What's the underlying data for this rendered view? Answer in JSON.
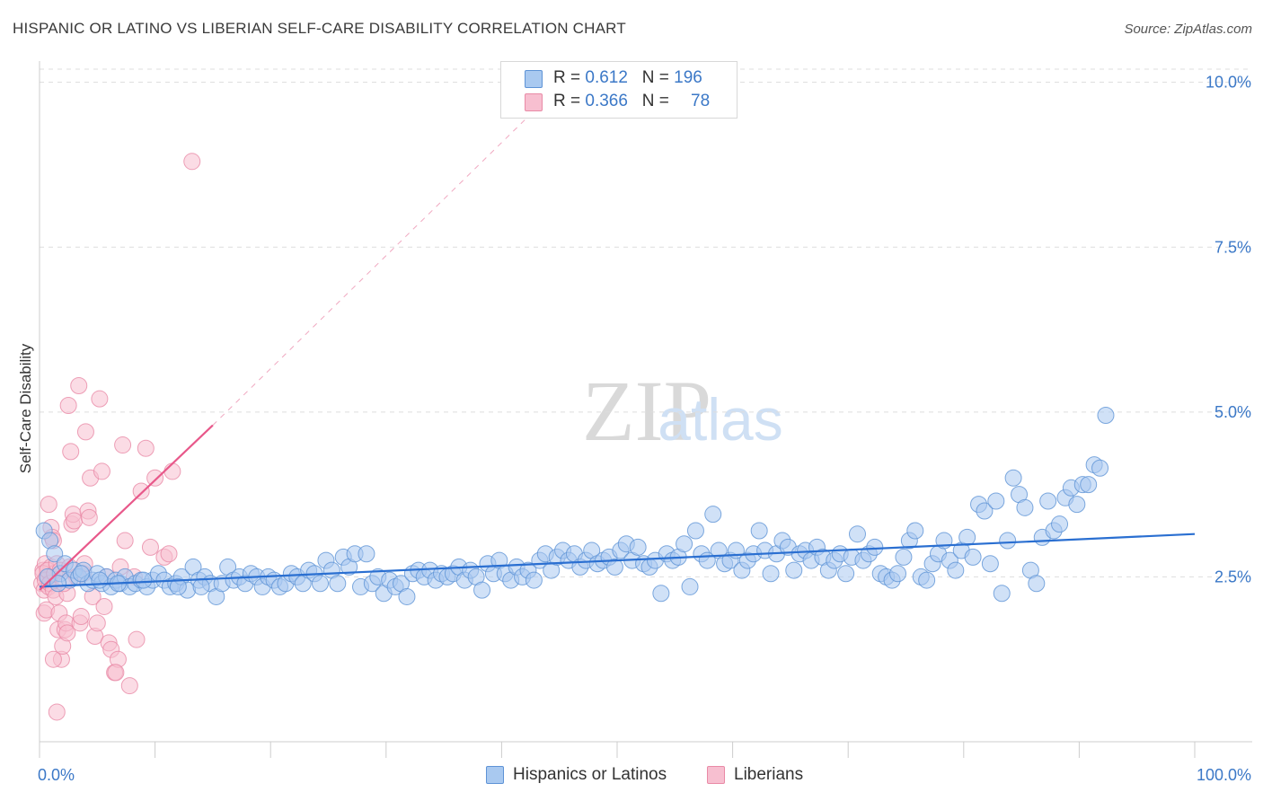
{
  "title": "HISPANIC OR LATINO VS LIBERIAN SELF-CARE DISABILITY CORRELATION CHART",
  "source": "Source: ZipAtlas.com",
  "watermark": {
    "zip": "ZIP",
    "atlas": "atlas"
  },
  "colors": {
    "blue_fill": "#a9c9f0",
    "blue_stroke": "#5e93d6",
    "blue_line": "#2a6fd1",
    "pink_fill": "#f7bfd0",
    "pink_stroke": "#e98aa6",
    "pink_line": "#e8588a",
    "grid": "#dddddd",
    "tick_text": "#3b78c7"
  },
  "legend": {
    "rows": [
      {
        "r_label": "R = ",
        "r_value": "0.612",
        "n_label": "N = ",
        "n_value": "196",
        "color": "blue"
      },
      {
        "r_label": "R = ",
        "r_value": "0.366",
        "n_label": "N = ",
        "n_value": "78",
        "color": "pink"
      }
    ]
  },
  "bottom_legend": [
    {
      "label": "Hispanics or Latinos",
      "color": "blue"
    },
    {
      "label": "Liberians",
      "color": "pink"
    }
  ],
  "chart_data": {
    "type": "scatter",
    "title": "HISPANIC OR LATINO VS LIBERIAN SELF-CARE DISABILITY CORRELATION CHART",
    "xlabel": "",
    "ylabel": "Self-Care Disability",
    "xlim": [
      0,
      100
    ],
    "ylim": [
      0,
      10.2
    ],
    "x_tick_labels": [
      {
        "value": 0,
        "label": "0.0%"
      },
      {
        "value": 100,
        "label": "100.0%"
      }
    ],
    "y_tick_labels": [
      {
        "value": 2.5,
        "label": "2.5%"
      },
      {
        "value": 5.0,
        "label": "5.0%"
      },
      {
        "value": 7.5,
        "label": "7.5%"
      },
      {
        "value": 10.0,
        "label": "10.0%"
      }
    ],
    "grid": true,
    "legend_position": "top-center",
    "series": [
      {
        "name": "Hispanics or Latinos",
        "color": "blue",
        "trend": {
          "x0": 0,
          "y0": 2.35,
          "x1": 100,
          "y1": 3.15
        },
        "points": [
          [
            0.4,
            3.2
          ],
          [
            0.9,
            3.05
          ],
          [
            1.3,
            2.85
          ],
          [
            1.8,
            2.55
          ],
          [
            2.2,
            2.7
          ],
          [
            2.6,
            2.45
          ],
          [
            3.0,
            2.6
          ],
          [
            3.4,
            2.5
          ],
          [
            3.8,
            2.6
          ],
          [
            4.2,
            2.4
          ],
          [
            4.6,
            2.45
          ],
          [
            5.0,
            2.55
          ],
          [
            5.4,
            2.4
          ],
          [
            5.8,
            2.5
          ],
          [
            6.2,
            2.35
          ],
          [
            6.6,
            2.45
          ],
          [
            7.0,
            2.4
          ],
          [
            7.4,
            2.5
          ],
          [
            7.8,
            2.35
          ],
          [
            8.3,
            2.4
          ],
          [
            8.8,
            2.45
          ],
          [
            9.3,
            2.35
          ],
          [
            9.8,
            2.45
          ],
          [
            10.3,
            2.55
          ],
          [
            10.8,
            2.45
          ],
          [
            11.3,
            2.35
          ],
          [
            11.8,
            2.4
          ],
          [
            12.3,
            2.5
          ],
          [
            12.8,
            2.3
          ],
          [
            13.3,
            2.65
          ],
          [
            13.8,
            2.45
          ],
          [
            14.3,
            2.5
          ],
          [
            14.8,
            2.4
          ],
          [
            15.3,
            2.2
          ],
          [
            15.8,
            2.4
          ],
          [
            16.3,
            2.65
          ],
          [
            16.8,
            2.45
          ],
          [
            17.3,
            2.5
          ],
          [
            17.8,
            2.4
          ],
          [
            18.3,
            2.55
          ],
          [
            18.8,
            2.5
          ],
          [
            19.3,
            2.35
          ],
          [
            19.8,
            2.5
          ],
          [
            20.3,
            2.45
          ],
          [
            20.8,
            2.35
          ],
          [
            21.3,
            2.4
          ],
          [
            21.8,
            2.55
          ],
          [
            22.3,
            2.5
          ],
          [
            22.8,
            2.4
          ],
          [
            23.3,
            2.6
          ],
          [
            23.8,
            2.55
          ],
          [
            24.3,
            2.4
          ],
          [
            24.8,
            2.75
          ],
          [
            25.3,
            2.6
          ],
          [
            25.8,
            2.4
          ],
          [
            26.3,
            2.8
          ],
          [
            26.8,
            2.65
          ],
          [
            27.3,
            2.85
          ],
          [
            27.8,
            2.35
          ],
          [
            28.3,
            2.85
          ],
          [
            28.8,
            2.4
          ],
          [
            29.3,
            2.5
          ],
          [
            29.8,
            2.25
          ],
          [
            30.3,
            2.45
          ],
          [
            30.8,
            2.35
          ],
          [
            31.3,
            2.4
          ],
          [
            31.8,
            2.2
          ],
          [
            32.3,
            2.55
          ],
          [
            32.8,
            2.6
          ],
          [
            33.3,
            2.5
          ],
          [
            33.8,
            2.6
          ],
          [
            34.3,
            2.45
          ],
          [
            34.8,
            2.55
          ],
          [
            35.3,
            2.5
          ],
          [
            35.8,
            2.55
          ],
          [
            36.3,
            2.65
          ],
          [
            36.8,
            2.45
          ],
          [
            37.3,
            2.6
          ],
          [
            37.8,
            2.5
          ],
          [
            38.3,
            2.3
          ],
          [
            38.8,
            2.7
          ],
          [
            39.3,
            2.55
          ],
          [
            39.8,
            2.75
          ],
          [
            40.3,
            2.55
          ],
          [
            40.8,
            2.45
          ],
          [
            41.3,
            2.65
          ],
          [
            41.8,
            2.5
          ],
          [
            42.3,
            2.6
          ],
          [
            42.8,
            2.45
          ],
          [
            43.3,
            2.75
          ],
          [
            43.8,
            2.85
          ],
          [
            44.3,
            2.6
          ],
          [
            44.8,
            2.8
          ],
          [
            45.3,
            2.9
          ],
          [
            45.8,
            2.75
          ],
          [
            46.3,
            2.85
          ],
          [
            46.8,
            2.65
          ],
          [
            47.3,
            2.75
          ],
          [
            47.8,
            2.9
          ],
          [
            48.3,
            2.7
          ],
          [
            48.8,
            2.75
          ],
          [
            49.3,
            2.8
          ],
          [
            49.8,
            2.65
          ],
          [
            50.3,
            2.9
          ],
          [
            50.8,
            3.0
          ],
          [
            51.3,
            2.75
          ],
          [
            51.8,
            2.95
          ],
          [
            52.3,
            2.7
          ],
          [
            52.8,
            2.65
          ],
          [
            53.3,
            2.75
          ],
          [
            53.8,
            2.25
          ],
          [
            54.3,
            2.85
          ],
          [
            54.8,
            2.75
          ],
          [
            55.3,
            2.8
          ],
          [
            55.8,
            3.0
          ],
          [
            56.3,
            2.35
          ],
          [
            56.8,
            3.2
          ],
          [
            57.3,
            2.85
          ],
          [
            57.8,
            2.75
          ],
          [
            58.3,
            3.45
          ],
          [
            58.8,
            2.9
          ],
          [
            59.3,
            2.7
          ],
          [
            59.8,
            2.75
          ],
          [
            60.3,
            2.9
          ],
          [
            60.8,
            2.6
          ],
          [
            61.3,
            2.75
          ],
          [
            61.8,
            2.85
          ],
          [
            62.3,
            3.2
          ],
          [
            62.8,
            2.9
          ],
          [
            63.3,
            2.55
          ],
          [
            63.8,
            2.85
          ],
          [
            64.3,
            3.05
          ],
          [
            64.8,
            2.95
          ],
          [
            65.3,
            2.6
          ],
          [
            65.8,
            2.85
          ],
          [
            66.3,
            2.9
          ],
          [
            66.8,
            2.75
          ],
          [
            67.3,
            2.95
          ],
          [
            67.8,
            2.8
          ],
          [
            68.3,
            2.6
          ],
          [
            68.8,
            2.75
          ],
          [
            69.3,
            2.85
          ],
          [
            69.8,
            2.55
          ],
          [
            70.3,
            2.8
          ],
          [
            70.8,
            3.15
          ],
          [
            71.3,
            2.75
          ],
          [
            71.8,
            2.85
          ],
          [
            72.3,
            2.95
          ],
          [
            72.8,
            2.55
          ],
          [
            73.3,
            2.5
          ],
          [
            73.8,
            2.45
          ],
          [
            74.3,
            2.55
          ],
          [
            74.8,
            2.8
          ],
          [
            75.3,
            3.05
          ],
          [
            75.8,
            3.2
          ],
          [
            76.3,
            2.5
          ],
          [
            76.8,
            2.45
          ],
          [
            77.3,
            2.7
          ],
          [
            77.8,
            2.85
          ],
          [
            78.3,
            3.05
          ],
          [
            78.8,
            2.75
          ],
          [
            79.3,
            2.6
          ],
          [
            79.8,
            2.9
          ],
          [
            80.3,
            3.1
          ],
          [
            80.8,
            2.8
          ],
          [
            81.3,
            3.6
          ],
          [
            81.8,
            3.5
          ],
          [
            82.3,
            2.7
          ],
          [
            82.8,
            3.65
          ],
          [
            83.3,
            2.25
          ],
          [
            83.8,
            3.05
          ],
          [
            84.3,
            4.0
          ],
          [
            84.8,
            3.75
          ],
          [
            85.3,
            3.55
          ],
          [
            85.8,
            2.6
          ],
          [
            86.3,
            2.4
          ],
          [
            86.8,
            3.1
          ],
          [
            87.3,
            3.65
          ],
          [
            87.8,
            3.2
          ],
          [
            88.3,
            3.3
          ],
          [
            88.8,
            3.7
          ],
          [
            89.3,
            3.85
          ],
          [
            89.8,
            3.6
          ],
          [
            90.3,
            3.9
          ],
          [
            90.8,
            3.9
          ],
          [
            91.3,
            4.2
          ],
          [
            91.8,
            4.15
          ],
          [
            92.3,
            4.95
          ],
          [
            0.7,
            2.5
          ],
          [
            1.6,
            2.4
          ],
          [
            3.6,
            2.55
          ],
          [
            5.2,
            2.45
          ],
          [
            6.8,
            2.4
          ],
          [
            9.0,
            2.45
          ],
          [
            12.0,
            2.35
          ],
          [
            14.0,
            2.35
          ]
        ]
      },
      {
        "name": "Liberians",
        "color": "pink",
        "trend": {
          "x0": 0,
          "y0": 2.3,
          "x1": 15,
          "y1": 4.8
        },
        "trend_extension": {
          "x1": 43,
          "y1": 9.6
        },
        "points": [
          [
            0.2,
            2.4
          ],
          [
            0.3,
            2.6
          ],
          [
            0.4,
            2.3
          ],
          [
            0.5,
            2.7
          ],
          [
            0.6,
            2.5
          ],
          [
            0.7,
            2.45
          ],
          [
            0.8,
            2.35
          ],
          [
            0.9,
            2.55
          ],
          [
            1.0,
            2.65
          ],
          [
            1.1,
            2.5
          ],
          [
            0.3,
            2.55
          ],
          [
            0.5,
            2.45
          ],
          [
            0.7,
            2.6
          ],
          [
            0.9,
            2.4
          ],
          [
            1.2,
            2.3
          ],
          [
            0.4,
            1.95
          ],
          [
            0.6,
            2.0
          ],
          [
            1.3,
            2.55
          ],
          [
            1.5,
            2.7
          ],
          [
            1.8,
            2.6
          ],
          [
            0.8,
            3.6
          ],
          [
            1.0,
            3.25
          ],
          [
            1.1,
            3.1
          ],
          [
            1.2,
            3.05
          ],
          [
            1.4,
            2.2
          ],
          [
            1.6,
            1.7
          ],
          [
            1.7,
            1.95
          ],
          [
            1.9,
            1.25
          ],
          [
            2.0,
            1.45
          ],
          [
            2.2,
            1.7
          ],
          [
            2.3,
            1.8
          ],
          [
            2.4,
            1.65
          ],
          [
            2.6,
            2.65
          ],
          [
            2.8,
            3.3
          ],
          [
            2.9,
            3.45
          ],
          [
            3.0,
            3.35
          ],
          [
            3.2,
            2.5
          ],
          [
            3.4,
            5.4
          ],
          [
            3.5,
            1.8
          ],
          [
            3.6,
            1.9
          ],
          [
            3.8,
            2.55
          ],
          [
            4.0,
            4.7
          ],
          [
            4.2,
            3.5
          ],
          [
            4.4,
            4.0
          ],
          [
            4.6,
            2.2
          ],
          [
            4.8,
            1.6
          ],
          [
            5.0,
            1.8
          ],
          [
            5.2,
            5.2
          ],
          [
            5.4,
            4.1
          ],
          [
            5.6,
            2.05
          ],
          [
            5.8,
            2.5
          ],
          [
            6.0,
            1.5
          ],
          [
            6.2,
            1.4
          ],
          [
            6.5,
            1.05
          ],
          [
            6.8,
            1.25
          ],
          [
            7.2,
            4.5
          ],
          [
            7.4,
            3.05
          ],
          [
            7.8,
            0.85
          ],
          [
            8.2,
            2.5
          ],
          [
            8.4,
            1.55
          ],
          [
            8.8,
            3.8
          ],
          [
            9.2,
            4.45
          ],
          [
            9.6,
            2.95
          ],
          [
            10.0,
            4.0
          ],
          [
            10.8,
            2.8
          ],
          [
            11.2,
            2.85
          ],
          [
            11.5,
            4.1
          ],
          [
            13.2,
            8.8
          ],
          [
            2.5,
            5.1
          ],
          [
            2.7,
            4.4
          ],
          [
            1.5,
            0.45
          ],
          [
            1.2,
            1.25
          ],
          [
            2.4,
            2.25
          ],
          [
            3.9,
            2.7
          ],
          [
            4.3,
            3.4
          ],
          [
            6.6,
            1.05
          ],
          [
            7.0,
            2.65
          ],
          [
            2.1,
            2.4
          ]
        ]
      }
    ]
  }
}
